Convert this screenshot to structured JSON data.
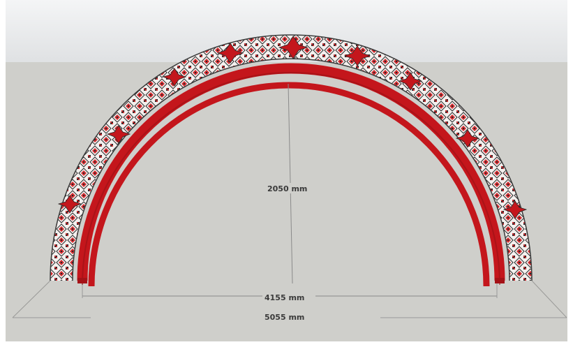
{
  "scene": {
    "sky_color": "#e8eaec",
    "ground_color": "#cfcfcb",
    "arch_red": "#c4161c",
    "embroidery_red": "#d42a2f",
    "embroidery_black": "#2b2b2b",
    "dimension_line_color": "#8a8a8a"
  },
  "dimensions": {
    "height_label": "2050 mm",
    "inner_width_label": "4155 mm",
    "outer_width_label": "5055 mm"
  }
}
